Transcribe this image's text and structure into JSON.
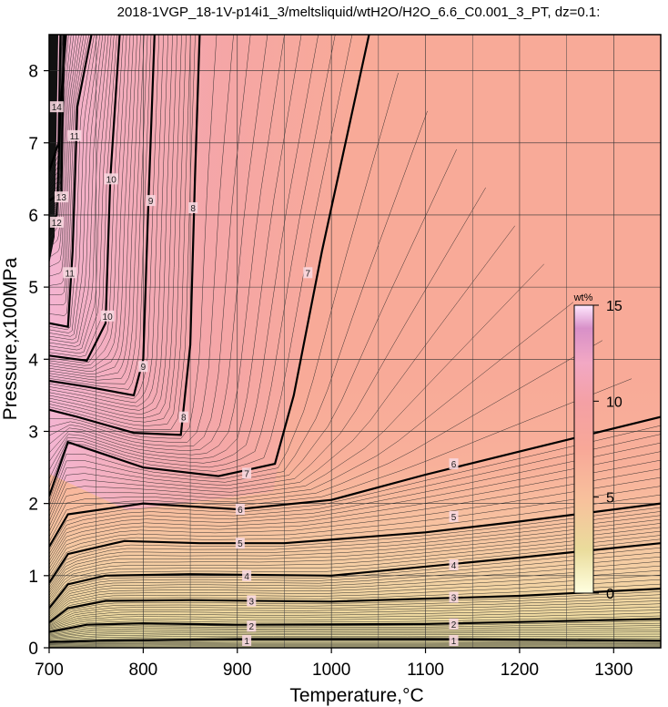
{
  "chart_data": {
    "type": "contour",
    "title": "2018-1VGP_18-1V-p14i1_3/meltsliquid/wtH2O/H2O_6.6_C0.001_3_PT, dz=0.1:",
    "xlabel": "Temperature,°C",
    "ylabel": "Pressure,x100MPa",
    "xlim": [
      700,
      1350
    ],
    "ylim": [
      0,
      8.5
    ],
    "x_ticks": [
      "700",
      "800",
      "900",
      "1000",
      "1100",
      "1200",
      "1300"
    ],
    "y_ticks": [
      "0",
      "1",
      "2",
      "3",
      "4",
      "5",
      "6",
      "7",
      "8"
    ],
    "grid": true,
    "colorbar": {
      "label": "wt%",
      "range": [
        0,
        15
      ],
      "ticks": [
        "15",
        "10",
        "5",
        "0"
      ],
      "colors": [
        "#ffffe0",
        "#ead59a",
        "#f8b48c",
        "#f59a94",
        "#f4a2b0",
        "#ffd8ff",
        "#e8b8f4"
      ],
      "placement": "right, inside plot"
    },
    "contour_levels": [
      {
        "level": 1,
        "label": "1",
        "points": [
          [
            700,
            0.08
          ],
          [
            760,
            0.1
          ],
          [
            900,
            0.12
          ],
          [
            1100,
            0.12
          ],
          [
            1350,
            0.1
          ]
        ],
        "label_at": [
          [
            910,
            0.1
          ],
          [
            1130,
            0.1
          ]
        ]
      },
      {
        "level": 2,
        "label": "2",
        "points": [
          [
            700,
            0.22
          ],
          [
            740,
            0.32
          ],
          [
            800,
            0.34
          ],
          [
            900,
            0.32
          ],
          [
            1100,
            0.33
          ],
          [
            1350,
            0.4
          ]
        ],
        "label_at": [
          [
            915,
            0.3
          ],
          [
            1130,
            0.33
          ]
        ]
      },
      {
        "level": 3,
        "label": "3",
        "points": [
          [
            700,
            0.35
          ],
          [
            720,
            0.55
          ],
          [
            760,
            0.65
          ],
          [
            850,
            0.66
          ],
          [
            1000,
            0.64
          ],
          [
            1200,
            0.72
          ],
          [
            1350,
            0.82
          ]
        ],
        "label_at": [
          [
            915,
            0.65
          ],
          [
            1130,
            0.7
          ]
        ]
      },
      {
        "level": 4,
        "label": "4",
        "points": [
          [
            700,
            0.55
          ],
          [
            720,
            0.88
          ],
          [
            760,
            1.0
          ],
          [
            850,
            1.02
          ],
          [
            1000,
            1.0
          ],
          [
            1200,
            1.25
          ],
          [
            1350,
            1.45
          ]
        ],
        "label_at": [
          [
            910,
            1.0
          ],
          [
            1130,
            1.15
          ]
        ]
      },
      {
        "level": 5,
        "label": "5",
        "points": [
          [
            700,
            0.9
          ],
          [
            720,
            1.3
          ],
          [
            780,
            1.48
          ],
          [
            860,
            1.45
          ],
          [
            950,
            1.45
          ],
          [
            1100,
            1.6
          ],
          [
            1200,
            1.75
          ],
          [
            1350,
            2.0
          ]
        ],
        "label_at": [
          [
            903,
            1.45
          ],
          [
            1130,
            1.82
          ]
        ]
      },
      {
        "level": 6,
        "label": "6",
        "points": [
          [
            700,
            1.4
          ],
          [
            720,
            1.85
          ],
          [
            800,
            2.0
          ],
          [
            900,
            1.92
          ],
          [
            1000,
            2.05
          ],
          [
            1100,
            2.4
          ],
          [
            1200,
            2.72
          ],
          [
            1350,
            3.2
          ]
        ],
        "label_at": [
          [
            903,
            1.92
          ],
          [
            1130,
            2.55
          ]
        ]
      },
      {
        "level": 7,
        "label": "7",
        "points": [
          [
            700,
            2.1
          ],
          [
            720,
            2.85
          ],
          [
            800,
            2.5
          ],
          [
            880,
            2.38
          ],
          [
            940,
            2.55
          ],
          [
            960,
            3.5
          ],
          [
            990,
            5.5
          ],
          [
            1040,
            8.5
          ]
        ],
        "label_at": [
          [
            910,
            2.42
          ],
          [
            975,
            5.2
          ]
        ]
      },
      {
        "level": 8,
        "label": "8",
        "points": [
          [
            700,
            3.3
          ],
          [
            730,
            3.2
          ],
          [
            790,
            2.98
          ],
          [
            840,
            2.95
          ],
          [
            850,
            4.2
          ],
          [
            855,
            6.5
          ],
          [
            860,
            8.5
          ]
        ],
        "label_at": [
          [
            843,
            3.2
          ],
          [
            853,
            6.1
          ]
        ]
      },
      {
        "level": 9,
        "label": "9",
        "points": [
          [
            700,
            3.7
          ],
          [
            740,
            3.62
          ],
          [
            790,
            3.5
          ],
          [
            800,
            4.0
          ],
          [
            805,
            6.0
          ],
          [
            812,
            8.5
          ]
        ],
        "label_at": [
          [
            800,
            3.9
          ],
          [
            808,
            6.2
          ]
        ]
      },
      {
        "level": 10,
        "label": "10",
        "points": [
          [
            700,
            4.05
          ],
          [
            740,
            3.98
          ],
          [
            760,
            4.5
          ],
          [
            765,
            6.5
          ],
          [
            775,
            8.5
          ]
        ],
        "label_at": [
          [
            762,
            4.6
          ],
          [
            766,
            6.5
          ]
        ]
      },
      {
        "level": 11,
        "label": "11",
        "points": [
          [
            700,
            4.5
          ],
          [
            720,
            4.45
          ],
          [
            725,
            5.5
          ],
          [
            730,
            7.5
          ],
          [
            745,
            8.5
          ]
        ],
        "label_at": [
          [
            722,
            5.2
          ],
          [
            727,
            7.1
          ]
        ]
      },
      {
        "level": 12,
        "label": "12",
        "points": [
          [
            700,
            5.8
          ],
          [
            708,
            6.0
          ],
          [
            712,
            7.5
          ],
          [
            718,
            8.5
          ]
        ],
        "label_at": [
          [
            708,
            5.9
          ]
        ]
      },
      {
        "level": 13,
        "label": "13",
        "points": [
          [
            700,
            6.2
          ],
          [
            713,
            6.3
          ],
          [
            716,
            8.5
          ]
        ],
        "label_at": [
          [
            713,
            6.25
          ]
        ]
      },
      {
        "level": 14,
        "label": "14",
        "points": [
          [
            700,
            6.6
          ],
          [
            710,
            7.0
          ],
          [
            712,
            8.5
          ]
        ],
        "label_at": [
          [
            708,
            7.5
          ]
        ]
      }
    ]
  }
}
